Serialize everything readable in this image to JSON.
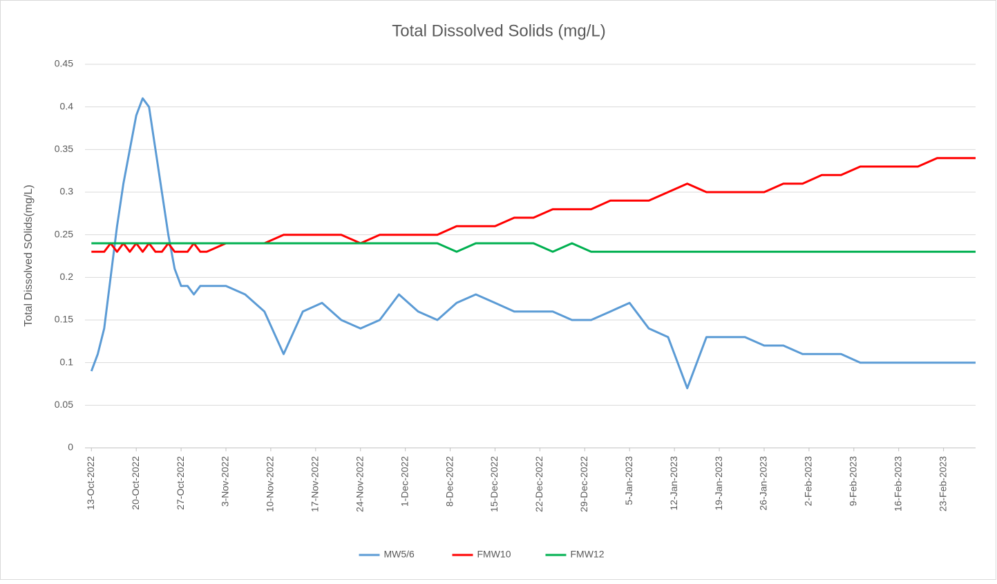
{
  "chart_data": {
    "type": "line",
    "title": "Total Dissolved Solids (mg/L)",
    "y_label": "Total Dissolved SOlids(mg/L)",
    "x": [
      "2022-10-13",
      "2022-10-14",
      "2022-10-15",
      "2022-10-16",
      "2022-10-17",
      "2022-10-18",
      "2022-10-19",
      "2022-10-20",
      "2022-10-21",
      "2022-10-22",
      "2022-10-23",
      "2022-10-24",
      "2022-10-25",
      "2022-10-26",
      "2022-10-27",
      "2022-10-28",
      "2022-10-29",
      "2022-10-30",
      "2022-10-31",
      "2022-11-03",
      "2022-11-06",
      "2022-11-09",
      "2022-11-12",
      "2022-11-15",
      "2022-11-18",
      "2022-11-21",
      "2022-11-24",
      "2022-11-27",
      "2022-11-30",
      "2022-12-03",
      "2022-12-06",
      "2022-12-09",
      "2022-12-12",
      "2022-12-15",
      "2022-12-18",
      "2022-12-21",
      "2022-12-24",
      "2022-12-27",
      "2022-12-30",
      "2023-01-02",
      "2023-01-05",
      "2023-01-08",
      "2023-01-11",
      "2023-01-14",
      "2023-01-17",
      "2023-01-20",
      "2023-01-23",
      "2023-01-26",
      "2023-01-29",
      "2023-02-01",
      "2023-02-04",
      "2023-02-07",
      "2023-02-10",
      "2023-02-13",
      "2023-02-16",
      "2023-02-19",
      "2023-02-22",
      "2023-02-25",
      "2023-02-28"
    ],
    "series": [
      {
        "name": "MW5/6",
        "color": "#5b9bd5",
        "values": [
          0.09,
          0.11,
          0.14,
          0.2,
          0.26,
          0.31,
          0.35,
          0.39,
          0.41,
          0.4,
          0.35,
          0.3,
          0.25,
          0.21,
          0.19,
          0.19,
          0.18,
          0.19,
          0.19,
          0.19,
          0.18,
          0.16,
          0.11,
          0.16,
          0.17,
          0.15,
          0.14,
          0.15,
          0.18,
          0.16,
          0.15,
          0.17,
          0.18,
          0.17,
          0.16,
          0.16,
          0.16,
          0.15,
          0.15,
          0.16,
          0.17,
          0.14,
          0.13,
          0.07,
          0.13,
          0.13,
          0.13,
          0.12,
          0.12,
          0.11,
          0.11,
          0.11,
          0.1,
          0.1,
          0.1,
          0.1,
          0.1,
          0.1,
          0.1
        ]
      },
      {
        "name": "FMW10",
        "color": "#ff0000",
        "values": [
          0.23,
          0.23,
          0.23,
          0.24,
          0.23,
          0.24,
          0.23,
          0.24,
          0.23,
          0.24,
          0.23,
          0.23,
          0.24,
          0.23,
          0.23,
          0.23,
          0.24,
          0.23,
          0.23,
          0.24,
          0.24,
          0.24,
          0.25,
          0.25,
          0.25,
          0.25,
          0.24,
          0.25,
          0.25,
          0.25,
          0.25,
          0.26,
          0.26,
          0.26,
          0.27,
          0.27,
          0.28,
          0.28,
          0.28,
          0.29,
          0.29,
          0.29,
          0.3,
          0.31,
          0.3,
          0.3,
          0.3,
          0.3,
          0.31,
          0.31,
          0.32,
          0.32,
          0.33,
          0.33,
          0.33,
          0.33,
          0.34,
          0.34,
          0.34
        ]
      },
      {
        "name": "FMW12",
        "color": "#00b050",
        "values": [
          0.24,
          0.24,
          0.24,
          0.24,
          0.24,
          0.24,
          0.24,
          0.24,
          0.24,
          0.24,
          0.24,
          0.24,
          0.24,
          0.24,
          0.24,
          0.24,
          0.24,
          0.24,
          0.24,
          0.24,
          0.24,
          0.24,
          0.24,
          0.24,
          0.24,
          0.24,
          0.24,
          0.24,
          0.24,
          0.24,
          0.24,
          0.23,
          0.24,
          0.24,
          0.24,
          0.24,
          0.23,
          0.24,
          0.23,
          0.23,
          0.23,
          0.23,
          0.23,
          0.23,
          0.23,
          0.23,
          0.23,
          0.23,
          0.23,
          0.23,
          0.23,
          0.23,
          0.23,
          0.23,
          0.23,
          0.23,
          0.23,
          0.23,
          0.23
        ]
      }
    ],
    "xlim": [
      "2022-10-12",
      "2023-02-28"
    ],
    "xticks": [
      {
        "value": "2022-10-13",
        "label": "13-Oct-2022"
      },
      {
        "value": "2022-10-20",
        "label": "20-Oct-2022"
      },
      {
        "value": "2022-10-27",
        "label": "27-Oct-2022"
      },
      {
        "value": "2022-11-03",
        "label": "3-Nov-2022"
      },
      {
        "value": "2022-11-10",
        "label": "10-Nov-2022"
      },
      {
        "value": "2022-11-17",
        "label": "17-Nov-2022"
      },
      {
        "value": "2022-11-24",
        "label": "24-Nov-2022"
      },
      {
        "value": "2022-12-01",
        "label": "1-Dec-2022"
      },
      {
        "value": "2022-12-08",
        "label": "8-Dec-2022"
      },
      {
        "value": "2022-12-15",
        "label": "15-Dec-2022"
      },
      {
        "value": "2022-12-22",
        "label": "22-Dec-2022"
      },
      {
        "value": "2022-12-29",
        "label": "29-Dec-2022"
      },
      {
        "value": "2023-01-05",
        "label": "5-Jan-2023"
      },
      {
        "value": "2023-01-12",
        "label": "12-Jan-2023"
      },
      {
        "value": "2023-01-19",
        "label": "19-Jan-2023"
      },
      {
        "value": "2023-01-26",
        "label": "26-Jan-2023"
      },
      {
        "value": "2023-02-02",
        "label": "2-Feb-2023"
      },
      {
        "value": "2023-02-09",
        "label": "9-Feb-2023"
      },
      {
        "value": "2023-02-16",
        "label": "16-Feb-2023"
      },
      {
        "value": "2023-02-23",
        "label": "23-Feb-2023"
      }
    ],
    "ylim": [
      0,
      0.45
    ],
    "yticks": [
      0,
      0.05,
      0.1,
      0.15,
      0.2,
      0.25,
      0.3,
      0.35,
      0.4,
      0.45
    ],
    "grid": true,
    "legend": "bottom"
  }
}
